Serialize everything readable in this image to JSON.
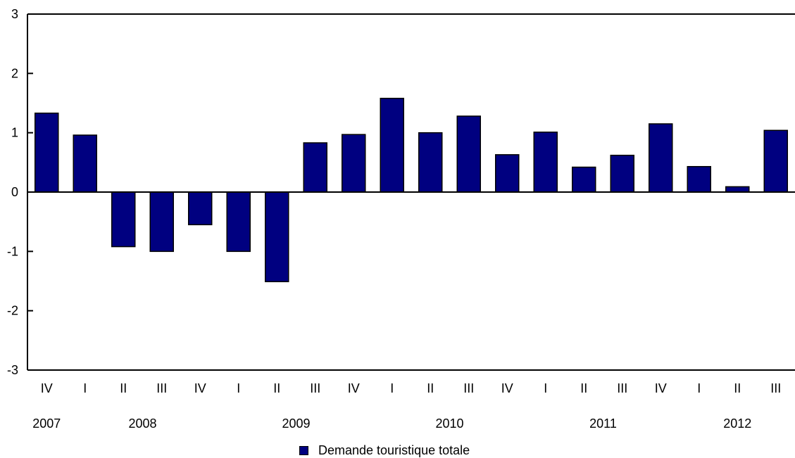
{
  "chart_data": {
    "type": "bar",
    "categories": [
      "IV",
      "I",
      "II",
      "III",
      "IV",
      "I",
      "II",
      "III",
      "IV",
      "I",
      "II",
      "III",
      "IV",
      "I",
      "II",
      "III",
      "IV",
      "I",
      "II",
      "III"
    ],
    "year_labels": [
      {
        "label": "2007",
        "start": 0,
        "end": 0
      },
      {
        "label": "2008",
        "start": 1,
        "end": 4
      },
      {
        "label": "2009",
        "start": 5,
        "end": 8
      },
      {
        "label": "2010",
        "start": 9,
        "end": 12
      },
      {
        "label": "2011",
        "start": 13,
        "end": 16
      },
      {
        "label": "2012",
        "start": 17,
        "end": 19
      }
    ],
    "series": [
      {
        "name": "Demande touristique totale",
        "color": "#000080",
        "values": [
          1.33,
          0.96,
          -0.92,
          -1.0,
          -0.55,
          -1.0,
          -1.51,
          0.83,
          0.97,
          1.58,
          1.0,
          1.28,
          0.63,
          1.01,
          0.42,
          0.62,
          1.15,
          0.43,
          0.09,
          1.04
        ]
      }
    ],
    "ylim": [
      -3,
      3
    ],
    "yticks": [
      3,
      2,
      1,
      0,
      -1,
      -2,
      -3
    ],
    "grid": false,
    "legend_position": "bottom-center",
    "title": "",
    "xlabel": "",
    "ylabel": ""
  }
}
